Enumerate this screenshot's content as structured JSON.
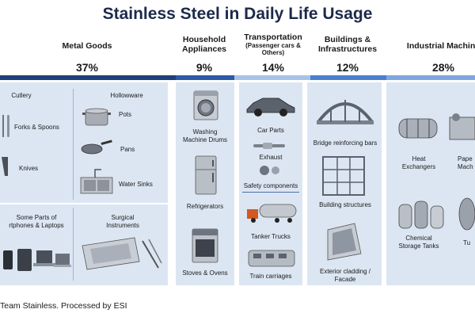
{
  "title": "Stainless Steel in Daily Life Usage",
  "categories": [
    {
      "name": "Metal Goods",
      "sub": "",
      "pct": "37%",
      "color": "#1f3f7a"
    },
    {
      "name": "Household Appliances",
      "sub": "",
      "pct": "9%",
      "color": "#2e5aa8"
    },
    {
      "name": "Transportation",
      "sub": "(Passenger cars & Others)",
      "pct": "14%",
      "color": "#a9c3e8"
    },
    {
      "name": "Buildings & Infrastructures",
      "sub": "",
      "pct": "12%",
      "color": "#4a7fd0"
    },
    {
      "name": "Industrial Machine",
      "sub": "",
      "pct": "28%",
      "color": "#7fa6de"
    }
  ],
  "metal_goods": {
    "cutlery_header": "Cutlery",
    "hollowware_header": "Hollowware",
    "forks_spoons": "Forks & Spoons",
    "knives": "Knives",
    "pots": "Pots",
    "pans": "Pans",
    "water_sinks": "Water Sinks",
    "phones_line1": "Some Parts of",
    "phones_line2": "rtphones & Laptops",
    "surgical_line1": "Surgical",
    "surgical_line2": "Instruments"
  },
  "household": {
    "washing_line1": "Washing",
    "washing_line2": "Machine Drums",
    "refrigerators": "Refrigerators",
    "stoves": "Stoves & Ovens"
  },
  "transport": {
    "car_parts": "Car Parts",
    "exhaust": "Exhaust",
    "safety": "Safety components",
    "tanker": "Tanker Trucks",
    "train": "Train carriages"
  },
  "buildings": {
    "bridge": "Bridge reinforcing bars",
    "structures": "Building structures",
    "cladding_line1": "Exterior cladding /",
    "cladding_line2": "Facade"
  },
  "industrial": {
    "heat_line1": "Heat",
    "heat_line2": "Exchangers",
    "paper_line1": "Pape",
    "paper_line2": "Mach",
    "chem_line1": "Chemical",
    "chem_line2": "Storage Tanks",
    "tu": "Tu"
  },
  "footer": "Team Stainless. Processed by ESI",
  "icons": [
    "fork-spoon-icon",
    "knife-icon",
    "pot-icon",
    "pan-icon",
    "sink-icon",
    "phone-laptop-icon",
    "surgical-tray-icon",
    "washing-machine-icon",
    "refrigerator-icon",
    "stove-icon",
    "car-icon",
    "exhaust-icon",
    "gear-icon",
    "tanker-truck-icon",
    "train-icon",
    "bridge-icon",
    "building-frame-icon",
    "facade-icon",
    "heat-exchanger-icon",
    "paper-machine-icon",
    "storage-tank-icon",
    "turbine-icon"
  ]
}
